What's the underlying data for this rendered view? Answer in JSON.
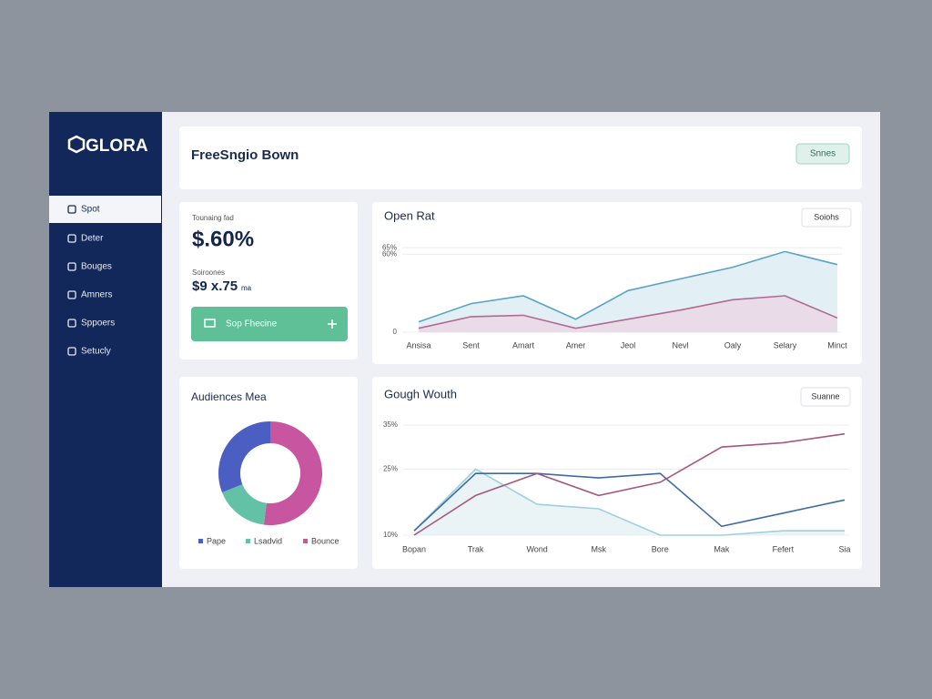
{
  "sidebar": {
    "logo": "GLORA",
    "nav": [
      "Spot",
      "Deter",
      "Bouges",
      "Amners",
      "Sppoers",
      "Setucly"
    ]
  },
  "header": {
    "title": "FreeSngio Bown",
    "button": "Snnes"
  },
  "stats": {
    "label1": "Tounaing fad",
    "value1": "$.60%",
    "label2": "Soiroones",
    "value2": "$9 x.75",
    "unit2": "ma",
    "button": "Sop Fhecine"
  },
  "chart_data": [
    {
      "type": "line",
      "title": "Open Rat",
      "button": "Soiohs",
      "categories": [
        "Ansisa",
        "Sent",
        "Amart",
        "Amer",
        "Jeol",
        "Nevl",
        "Oaly",
        "Selary",
        "Minct"
      ],
      "series": [
        {
          "color": "#5aa3c4",
          "fill": "#d6e9f2",
          "values": [
            8,
            22,
            28,
            10,
            32,
            41,
            50,
            62,
            52
          ]
        },
        {
          "color": "#b06a93",
          "fill": "#ecd3e2",
          "values": [
            3,
            12,
            13,
            3,
            10,
            17,
            25,
            28,
            11
          ]
        }
      ],
      "ylim": [
        0,
        70
      ],
      "yticks": [
        0,
        {
          "value": 60,
          "label": "60%"
        },
        {
          "value": 65,
          "label": "65%"
        }
      ],
      "grid": true
    },
    {
      "type": "line",
      "title": "Gough Wouth",
      "button": "Suanne",
      "categories": [
        "Bopan",
        "Trak",
        "Wond",
        "Msk",
        "Bore",
        "Mak",
        "Fefert",
        "Sia"
      ],
      "series": [
        {
          "color": "#9fd0dc",
          "fill": "#e1f0f4",
          "values": [
            11,
            25,
            17,
            16,
            10,
            10,
            11,
            11
          ]
        },
        {
          "color": "#3f6aa6",
          "values": [
            11,
            24,
            24,
            23,
            24,
            12,
            15,
            18
          ]
        },
        {
          "color": "#a5587c",
          "values": [
            10,
            19,
            24,
            19,
            22,
            30,
            31,
            33
          ]
        }
      ],
      "ylim": [
        10,
        35
      ],
      "yticks": [
        {
          "value": 10,
          "label": "10%"
        },
        {
          "value": 25,
          "label": "25%"
        },
        {
          "value": 35,
          "label": "35%"
        }
      ],
      "grid": true
    },
    {
      "type": "pie",
      "title": "Audiences Mea",
      "donut": true,
      "categories": [
        "Pape",
        "Lsadvid",
        "Bounce"
      ],
      "values": [
        31,
        17,
        52
      ],
      "colors": [
        "#4a5fc1",
        "#63c1a5",
        "#c8559f"
      ]
    }
  ]
}
